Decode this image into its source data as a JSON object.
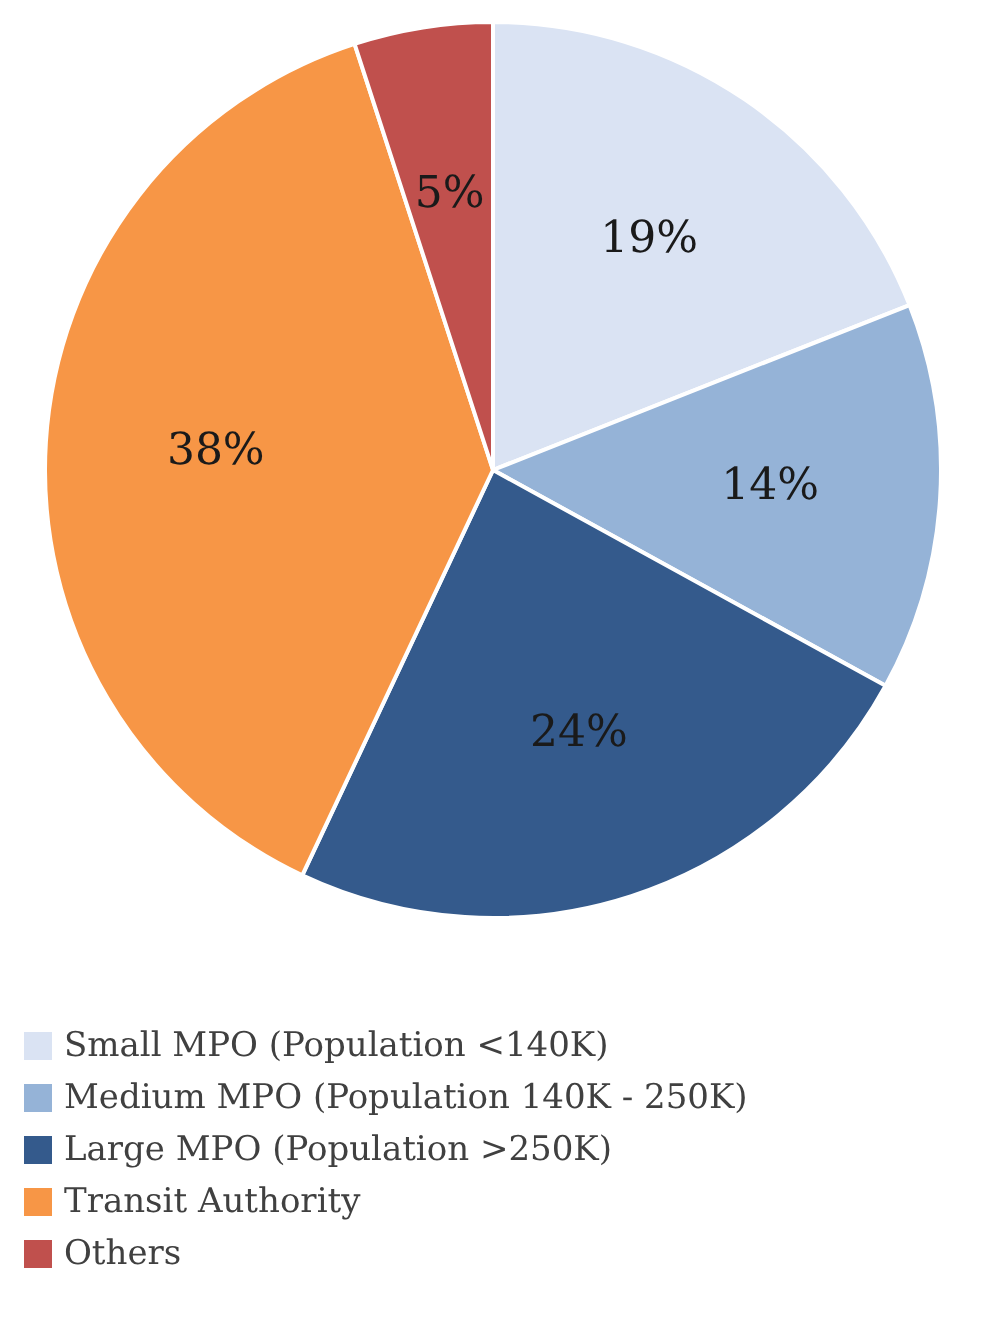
{
  "chart_data": {
    "type": "pie",
    "categories": [
      "Small MPO (Population <140K)",
      "Medium MPO (Population 140K - 250K)",
      "Large MPO (Population >250K)",
      "Transit Authority",
      "Others"
    ],
    "values": [
      19,
      14,
      24,
      38,
      5
    ],
    "value_labels": [
      "19%",
      "14%",
      "24%",
      "38%",
      "5%"
    ],
    "colors": [
      "#dae3f3",
      "#95b3d7",
      "#345a8c",
      "#f79646",
      "#c0504d"
    ],
    "legend": "bottom"
  }
}
